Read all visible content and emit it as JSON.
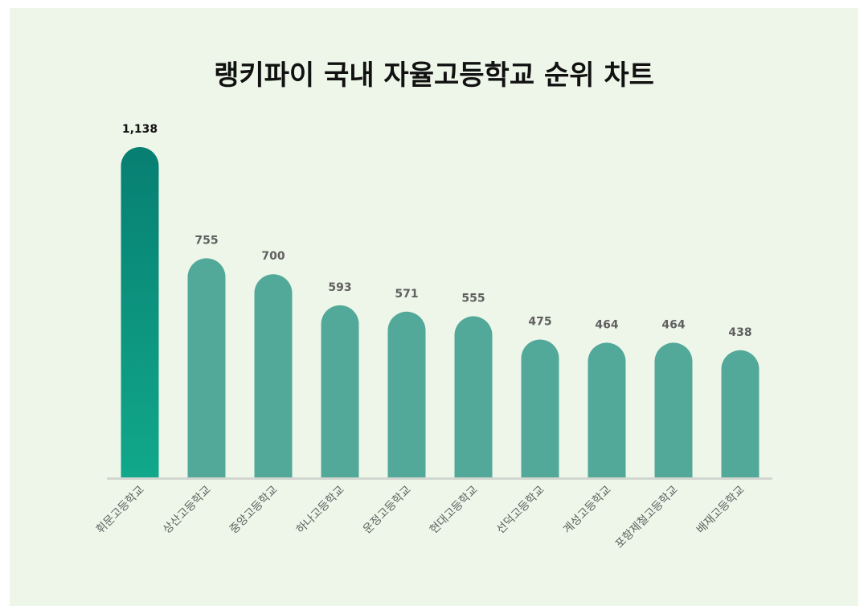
{
  "chart_data": {
    "type": "bar",
    "title": "랭키파이 국내 자율고등학교 순위 차트",
    "categories": [
      "휘문고등학교",
      "상산고등학교",
      "중앙고등학교",
      "하나고등학교",
      "운정고등학교",
      "현대고등학교",
      "선덕고등학교",
      "계성고등학교",
      "포항제철고등학교",
      "배재고등학교"
    ],
    "values": [
      1138,
      755,
      700,
      593,
      571,
      555,
      475,
      464,
      464,
      438
    ],
    "value_labels": [
      "1,138",
      "755",
      "700",
      "593",
      "571",
      "555",
      "475",
      "464",
      "464",
      "438"
    ],
    "xlabel": "",
    "ylabel": "",
    "ylim": [
      0,
      1138
    ],
    "grid": false,
    "legend": "none"
  },
  "colors": {
    "background": "#eef6e9",
    "bar": "#52a99a",
    "highlight_top": "#077f72",
    "highlight_bottom": "#11a88b",
    "baseline": "#d2d6d0",
    "top_label": "#111111",
    "value_label": "#606060",
    "category_label": "#5f5f5f"
  }
}
